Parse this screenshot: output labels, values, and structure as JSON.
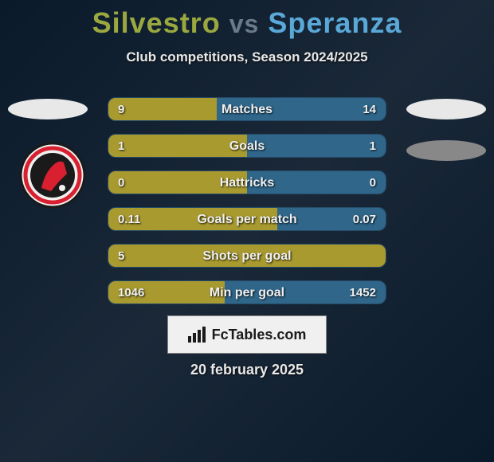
{
  "title": {
    "player1": "Silvestro",
    "vs": "vs",
    "player2": "Speranza"
  },
  "subtitle": "Club competitions, Season 2024/2025",
  "colors": {
    "left_bar": "#a89a2f",
    "right_bar": "#2f668a",
    "title_left": "#9aa83f",
    "title_right": "#5aa8d8",
    "bg_dark": "#0a1a2a"
  },
  "stats": [
    {
      "label": "Matches",
      "left_val": "9",
      "right_val": "14",
      "left_pct": 39,
      "right_pct": 61
    },
    {
      "label": "Goals",
      "left_val": "1",
      "right_val": "1",
      "left_pct": 50,
      "right_pct": 50
    },
    {
      "label": "Hattricks",
      "left_val": "0",
      "right_val": "0",
      "left_pct": 50,
      "right_pct": 50
    },
    {
      "label": "Goals per match",
      "left_val": "0.11",
      "right_val": "0.07",
      "left_pct": 61,
      "right_pct": 39
    },
    {
      "label": "Shots per goal",
      "left_val": "5",
      "right_val": "",
      "left_pct": 100,
      "right_pct": 0
    },
    {
      "label": "Min per goal",
      "left_val": "1046",
      "right_val": "1452",
      "left_pct": 42,
      "right_pct": 58
    }
  ],
  "branding": "FcTables.com",
  "date": "20 february 2025"
}
